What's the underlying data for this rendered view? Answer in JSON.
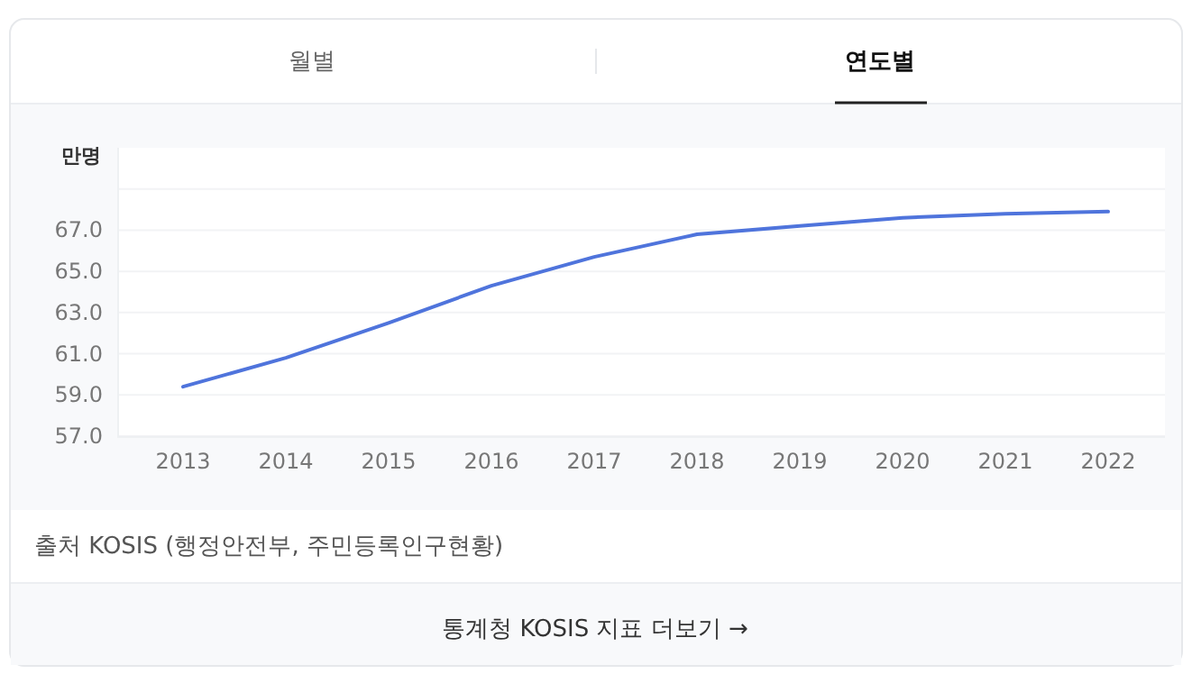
{
  "chart_data": {
    "type": "line",
    "ylabel": "만명",
    "categories": [
      "2013",
      "2014",
      "2015",
      "2016",
      "2017",
      "2018",
      "2019",
      "2020",
      "2021",
      "2022"
    ],
    "series": [
      {
        "color": "#4f74dc",
        "values": [
          59.4,
          60.8,
          62.5,
          64.3,
          65.7,
          66.8,
          67.2,
          67.6,
          67.8,
          67.9
        ]
      }
    ],
    "ylim": [
      57,
      71
    ],
    "yticks": [
      {
        "value": 57,
        "label": "57.0"
      },
      {
        "value": 59,
        "label": "59.0"
      },
      {
        "value": 61,
        "label": "61.0"
      },
      {
        "value": 63,
        "label": "63.0"
      },
      {
        "value": 65,
        "label": "65.0"
      },
      {
        "value": 67,
        "label": "67.0"
      },
      {
        "value": 69,
        "label": null
      }
    ],
    "grid": "y",
    "marker": "none",
    "line_style": "solid",
    "annotations": [
      "월별",
      "연도별",
      "출처 KOSIS (행정안전부, 주민등록인구현황)",
      "통계청 KOSIS 지표 더보기 →"
    ]
  }
}
